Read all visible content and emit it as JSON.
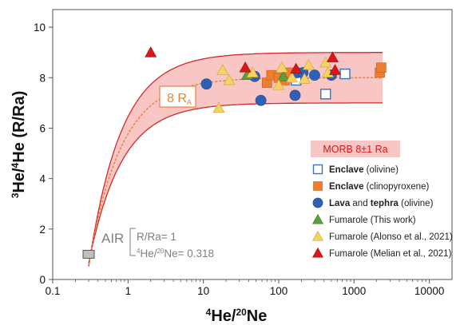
{
  "chart_data": {
    "type": "scatter",
    "x_scale": "log",
    "xlim": [
      0.1,
      20000
    ],
    "ylim": [
      0,
      10.7
    ],
    "x_ticks": [
      "0.1",
      "1",
      "10",
      "100",
      "1000",
      "10000"
    ],
    "y_ticks": [
      "0",
      "2",
      "4",
      "6",
      "8",
      "10"
    ],
    "xlabel": {
      "base": "He/",
      "sup1": "4",
      "sup2": "20",
      "tail": "Ne"
    },
    "ylabel": {
      "sup1": "3",
      "mid": "He/",
      "sup2": "4",
      "tail": "He (R/Ra)"
    },
    "band": {
      "center": 8,
      "upper": 9,
      "lower": 7,
      "air_ratio": 0.318,
      "x_max": 2400
    },
    "band_label": {
      "text": "8 R",
      "sub": "A"
    },
    "morb_label": "MORB 8±1 Ra",
    "air": {
      "label": "AIR",
      "line1": "R/Ra= 1",
      "line2_sup": "4",
      "line2_mid": "He/",
      "line2_sup2": "20",
      "line2_tail": "Ne= 0.318",
      "x": 0.3,
      "y": 1
    },
    "colors": {
      "band_fill": "#f9c6c6",
      "band_edge": "#d62828",
      "center_line": "#e8823a",
      "enclave_olivine": "#3a6fc4",
      "enclave_cpx": "#ed7d31",
      "lava": "#2e60b4",
      "fumarole_this": "#5e9e3a",
      "fumarole_alonso": "#f7d162",
      "fumarole_melian": "#d81717",
      "air_box": "#bfbfbf"
    },
    "series": [
      {
        "name": "Enclave (olivine)",
        "legend": {
          "bold": "Enclave",
          "rest": " (olivine)"
        },
        "marker": "square-open",
        "points": [
          [
            170,
            7.9
          ],
          [
            420,
            7.35
          ],
          [
            760,
            8.15
          ]
        ]
      },
      {
        "name": "Enclave (clinopyroxene)",
        "legend": {
          "bold": "Enclave",
          "rest": " (clinopyroxene)"
        },
        "marker": "square",
        "points": [
          [
            70,
            7.8
          ],
          [
            80,
            8.1
          ],
          [
            100,
            8.0
          ],
          [
            120,
            7.9
          ],
          [
            140,
            8.2
          ],
          [
            2200,
            8.2
          ],
          [
            2300,
            8.4
          ]
        ]
      },
      {
        "name": "Lava and tephra (olivine)",
        "legend": {
          "bold": "Lava",
          "mid": " and ",
          "bold2": "tephra",
          "rest": " (olivine)"
        },
        "marker": "circle",
        "points": [
          [
            11,
            7.75
          ],
          [
            48,
            8.05
          ],
          [
            58,
            7.1
          ],
          [
            165,
            7.3
          ],
          [
            175,
            8.2
          ],
          [
            210,
            8.2
          ],
          [
            300,
            8.1
          ],
          [
            500,
            8.1
          ]
        ]
      },
      {
        "name": "Fumarole (This work)",
        "legend": {
          "rest": "Fumarole (This work)"
        },
        "marker": "triangle",
        "points": [
          [
            38,
            8.1
          ],
          [
            115,
            8.05
          ]
        ]
      },
      {
        "name": "Fumarole (Alonso et al., 2021)",
        "legend": {
          "rest": "Fumarole (Alonso et al., 2021)"
        },
        "marker": "triangle",
        "points": [
          [
            16,
            6.8
          ],
          [
            18,
            8.3
          ],
          [
            22,
            7.9
          ],
          [
            45,
            8.2
          ],
          [
            100,
            7.7
          ],
          [
            110,
            8.4
          ],
          [
            150,
            8.0
          ],
          [
            220,
            7.95
          ],
          [
            250,
            8.5
          ],
          [
            420,
            8.6
          ],
          [
            450,
            8.2
          ]
        ]
      },
      {
        "name": "Fumarole (Melian et al., 2021)",
        "legend": {
          "rest": "Fumarole (Melian et al., 2021)"
        },
        "marker": "triangle",
        "points": [
          [
            2,
            9.0
          ],
          [
            36,
            8.4
          ],
          [
            170,
            8.35
          ],
          [
            520,
            8.8
          ],
          [
            560,
            8.3
          ]
        ]
      }
    ]
  }
}
